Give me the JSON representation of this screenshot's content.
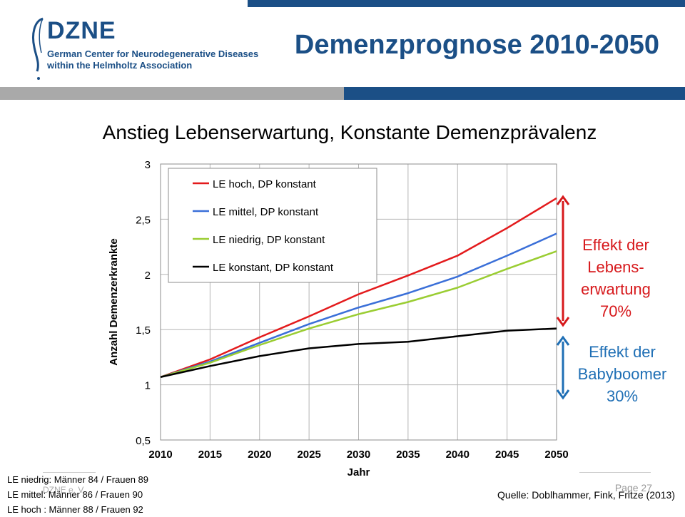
{
  "header": {
    "logo_name": "DZNE",
    "logo_line1": "German Center for Neurodegenerative Diseases",
    "logo_line2": "within the Helmholtz Association",
    "title": "Demenzprognose 2010-2050"
  },
  "colors": {
    "brand": "#1b4f86",
    "gray_bar": "#a9a9a9"
  },
  "chart_data": {
    "type": "line",
    "title": "Anstieg Lebenserwartung, Konstante Demenzprävalenz",
    "xlabel": "Jahr",
    "ylabel": "Anzahl Demenzerkrankte",
    "x": [
      2010,
      2015,
      2020,
      2025,
      2030,
      2035,
      2040,
      2045,
      2050
    ],
    "xlim": [
      2010,
      2050
    ],
    "ylim": [
      0.5,
      3
    ],
    "yticks": [
      0.5,
      1,
      1.5,
      2,
      2.5,
      3
    ],
    "ytick_labels": [
      "0,5",
      "1",
      "1,5",
      "2",
      "2,5",
      "3"
    ],
    "xtick_labels": [
      "2010",
      "2015",
      "2020",
      "2025",
      "2030",
      "2035",
      "2040",
      "2045",
      "2050"
    ],
    "grid": true,
    "legend_position": "top-left",
    "series": [
      {
        "name": "LE hoch, DP konstant",
        "color": "#e31a1c",
        "values": [
          1.07,
          1.23,
          1.43,
          1.62,
          1.82,
          1.99,
          2.17,
          2.42,
          2.69
        ]
      },
      {
        "name": "LE mittel, DP konstant",
        "color": "#3a6fd8",
        "values": [
          1.07,
          1.21,
          1.38,
          1.55,
          1.7,
          1.83,
          1.98,
          2.17,
          2.37
        ]
      },
      {
        "name": "LE niedrig, DP konstant",
        "color": "#9acd32",
        "values": [
          1.07,
          1.2,
          1.36,
          1.51,
          1.64,
          1.75,
          1.88,
          2.05,
          2.21
        ]
      },
      {
        "name": "LE konstant, DP konstant",
        "color": "#000000",
        "values": [
          1.07,
          1.17,
          1.26,
          1.33,
          1.37,
          1.39,
          1.44,
          1.49,
          1.51
        ]
      }
    ]
  },
  "annotations": {
    "life_expectancy_effect": [
      "Effekt der",
      "Lebens-",
      "erwartung",
      "70%"
    ],
    "baby_boomer_effect": [
      "Effekt der",
      "Babyboomer",
      "30%"
    ],
    "life_color": "#d7191c",
    "baby_color": "#1f6fb5"
  },
  "footnotes": [
    "LE niedrig: Männer 84 / Frauen 89",
    "LE mittel: Männer 86 / Frauen 90",
    "LE hoch : Männer 88 / Frauen 92"
  ],
  "footer": {
    "source": "Quelle: Doblhammer, Fink, Fritze (2013)",
    "page": "Page 27",
    "org": "DZNE e. V."
  }
}
